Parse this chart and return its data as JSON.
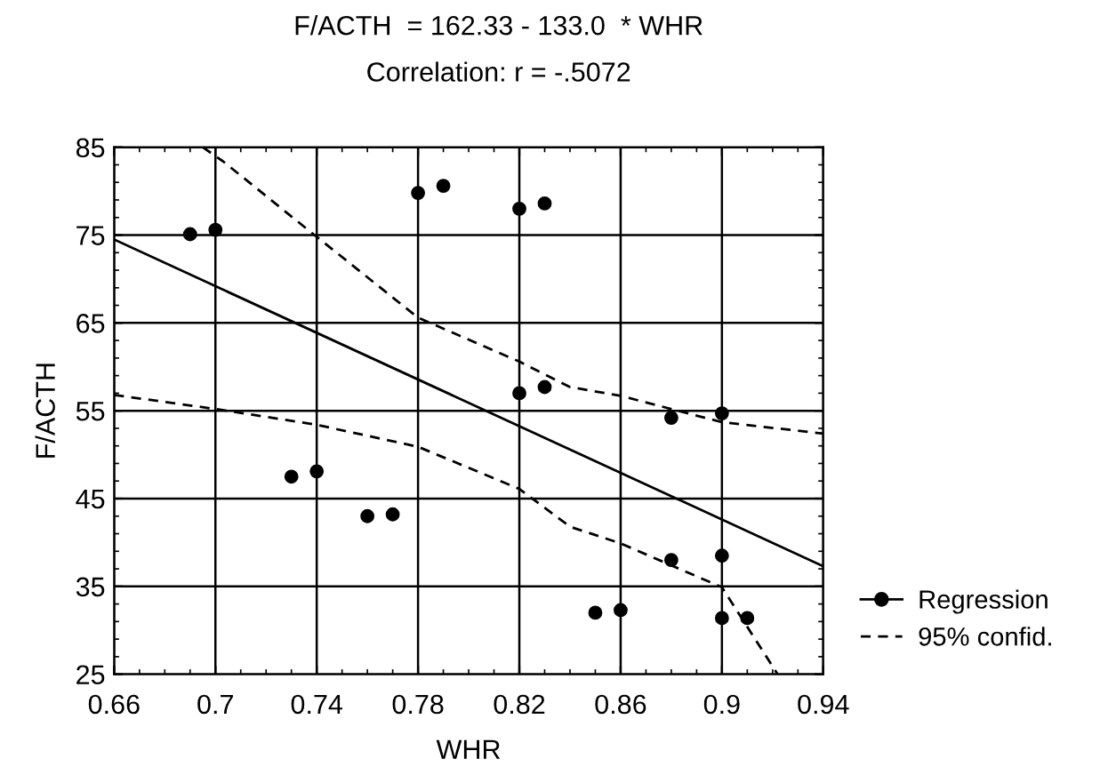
{
  "chart_data": {
    "type": "scatter",
    "title": "F/ACTH  = 162.33 - 133.0  * WHR",
    "subtitle": "Correlation: r = -.5072",
    "xlabel": "WHR",
    "ylabel": "F/ACTH",
    "xlim": [
      0.66,
      0.94
    ],
    "xticks": [
      0.66,
      0.7,
      0.74,
      0.78,
      0.82,
      0.86,
      0.9,
      0.94
    ],
    "ylim": [
      25,
      85
    ],
    "yticks": [
      25,
      35,
      45,
      55,
      65,
      75,
      85
    ],
    "grid": true,
    "legend": "bottom right",
    "series": [
      {
        "marker": "circle",
        "color": "#000000",
        "x": [
          0.69,
          0.7,
          0.73,
          0.74,
          0.76,
          0.77,
          0.78,
          0.79,
          0.82,
          0.83,
          0.82,
          0.83,
          0.88,
          0.9,
          0.88,
          0.9,
          0.85,
          0.86,
          0.9,
          0.91
        ],
        "values": [
          75.1,
          75.6,
          47.5,
          48.1,
          43.0,
          43.2,
          79.8,
          80.6,
          78.0,
          78.6,
          57.0,
          57.7,
          54.2,
          54.7,
          38.0,
          38.5,
          32.0,
          32.3,
          31.4,
          31.4
        ]
      },
      {
        "type": "line",
        "name": "Regression",
        "color": "#000000",
        "line_style": "solid",
        "marker": "none",
        "x": [
          0.66,
          0.94
        ],
        "values": [
          74.5,
          37.3
        ]
      },
      {
        "type": "line",
        "name": "95% confid.",
        "color": "#000000",
        "line_style": "dashed",
        "marker": "none",
        "x": [
          0.695,
          0.703,
          0.74,
          0.78,
          0.82,
          0.84,
          0.86,
          0.9,
          0.94
        ],
        "values": [
          85,
          83.4,
          74.8,
          65.6,
          60.6,
          57.7,
          56.7,
          53.7,
          52.4
        ]
      },
      {
        "type": "line",
        "color": "#000000",
        "line_style": "dashed",
        "marker": "none",
        "x": [
          0.66,
          0.7,
          0.74,
          0.78,
          0.82,
          0.84,
          0.86,
          0.9,
          0.922
        ],
        "values": [
          56.8,
          55.2,
          53.4,
          50.9,
          46.1,
          41.8,
          39.9,
          34.9,
          25
        ]
      }
    ]
  }
}
